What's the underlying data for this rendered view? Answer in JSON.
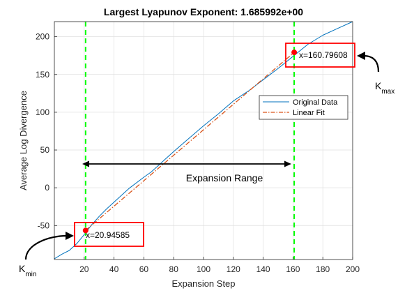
{
  "chart_data": {
    "type": "line",
    "title": "Largest Lyapunov Exponent: 1.685992e+00",
    "xlabel": "Expansion Step",
    "ylabel": "Average Log Divergence",
    "xlim": [
      0,
      200
    ],
    "ylim": [
      -95,
      220
    ],
    "xticks": [
      20,
      40,
      60,
      80,
      100,
      120,
      140,
      160,
      180,
      200
    ],
    "yticks": [
      -50,
      0,
      50,
      100,
      150,
      200
    ],
    "grid": true,
    "legend_position": "right",
    "series": [
      {
        "name": "Original Data",
        "style": "solid",
        "color": "#0072BD",
        "x": [
          0,
          5,
          10,
          15,
          20,
          25,
          30,
          35,
          40,
          50,
          60,
          65,
          70,
          75,
          80,
          90,
          100,
          110,
          120,
          130,
          140,
          150,
          160,
          170,
          180,
          190,
          200
        ],
        "y": [
          -94,
          -88,
          -83,
          -74,
          -62,
          -49,
          -38,
          -28,
          -19,
          -1,
          14,
          21,
          30,
          39,
          48,
          65,
          82,
          98,
          115,
          128,
          143,
          158,
          174,
          190,
          202,
          211,
          220
        ]
      },
      {
        "name": "Linear Fit",
        "style": "dashdot",
        "color": "#D95319",
        "x": [
          20.94585,
          160.79608
        ],
        "y": [
          -56.5,
          179.3
        ]
      }
    ],
    "markers": [
      {
        "x": 20.94585,
        "y": -56.5,
        "color": "#FF0000"
      },
      {
        "x": 160.79608,
        "y": 179.3,
        "color": "#FF0000"
      }
    ],
    "vlines": [
      {
        "x": 20.94585,
        "color": "#00FF00",
        "style": "dashed"
      },
      {
        "x": 160.79608,
        "color": "#00FF00",
        "style": "dashed"
      }
    ],
    "annotations": [
      {
        "text": "x=20.94585"
      },
      {
        "text": "x=160.79608"
      },
      {
        "text": "Expansion Range"
      }
    ],
    "side_labels": {
      "kmin_main": "K",
      "kmin_sub": "min",
      "kmax_main": "K",
      "kmax_sub": "max"
    }
  },
  "colors": {
    "original": "#0072BD",
    "fit": "#D95319",
    "vline": "#00FF00",
    "marker": "#FF0000",
    "annot_box": "#FF0000"
  }
}
